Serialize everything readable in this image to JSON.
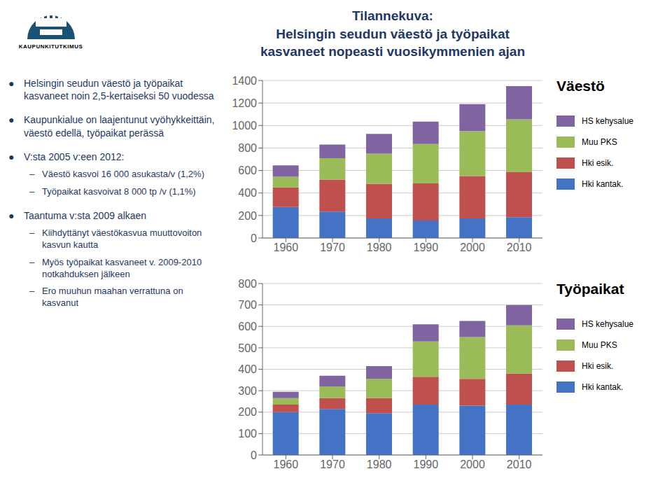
{
  "title": [
    "Tilannekuva:",
    "Helsingin seudun väestö ja työpaikat",
    "kasvaneet nopeasti vuosikymmenien ajan"
  ],
  "color": "#1F3864",
  "annotations": [
    {
      "text": "KAUPUNKITUTKIMUS"
    },
    {
      "text": "● Helsingin seudun väestö ja työpaikat kasvaneet noin 2,5-kertaiseksi 50 vuodessa",
      "items": []
    },
    {
      "text": "● Kaupunkialue on laajentunut vyöhykkeittäin, väestö edellä, työpaikat perässä",
      "items": []
    },
    {
      "text": "● V:sta 2005 v:een 2012:",
      "items": [
        "– Väestö kasvoi 16 000 asukasta/v (1,2%)",
        "– Työpaikat kasvoivat 8 000 tp /v (1,1%)"
      ]
    },
    {
      "text": "● Taantuma v:sta 2009 alkaen",
      "items": [
        "– Kiihdyttänyt väestökasvua muuttovoiton kasvun kautta",
        "– Myös työpaikat kasvaneet v. 2009-2010 notkahduksen jälkeen",
        "– Ero muuhun maahan verrattuna on kasvanut"
      ]
    }
  ],
  "chart_data": [
    {
      "type": "bar",
      "title": "Väestö",
      "stacked": true,
      "grid": true,
      "legend": "right",
      "categories": [
        "1960",
        "1970",
        "1980",
        "1990",
        "2000",
        "2010"
      ],
      "series": [
        {
          "name": "Hki kantak.",
          "color": "#4472C4",
          "values": [
            275,
            235,
            175,
            155,
            175,
            185
          ]
        },
        {
          "name": "Hki esik.",
          "color": "#C0504D",
          "values": [
            175,
            285,
            305,
            330,
            375,
            400
          ]
        },
        {
          "name": "Muu PKS",
          "color": "#9BBB59",
          "values": [
            95,
            190,
            270,
            350,
            400,
            470
          ]
        },
        {
          "name": "HS kehysalue",
          "color": "#8064A2",
          "values": [
            100,
            120,
            175,
            200,
            240,
            295
          ]
        }
      ],
      "ylim": [
        0,
        1400
      ],
      "yticks": [
        0,
        200,
        400,
        600,
        800,
        1000,
        1200,
        1400
      ]
    },
    {
      "type": "bar",
      "title": "Työpaikat",
      "stacked": true,
      "grid": true,
      "legend": "right",
      "categories": [
        "1960",
        "1970",
        "1980",
        "1990",
        "2000",
        "2010"
      ],
      "series": [
        {
          "name": "Hki kantak.",
          "color": "#4472C4",
          "values": [
            200,
            215,
            195,
            235,
            230,
            235
          ]
        },
        {
          "name": "Hki esik.",
          "color": "#C0504D",
          "values": [
            35,
            50,
            70,
            130,
            125,
            145
          ]
        },
        {
          "name": "Muu PKS",
          "color": "#9BBB59",
          "values": [
            30,
            55,
            90,
            165,
            195,
            225
          ]
        },
        {
          "name": "HS kehysalue",
          "color": "#8064A2",
          "values": [
            30,
            50,
            60,
            80,
            75,
            95
          ]
        }
      ],
      "ylim": [
        0,
        800
      ],
      "yticks": [
        0,
        100,
        200,
        300,
        400,
        500,
        600,
        700,
        800
      ]
    }
  ]
}
